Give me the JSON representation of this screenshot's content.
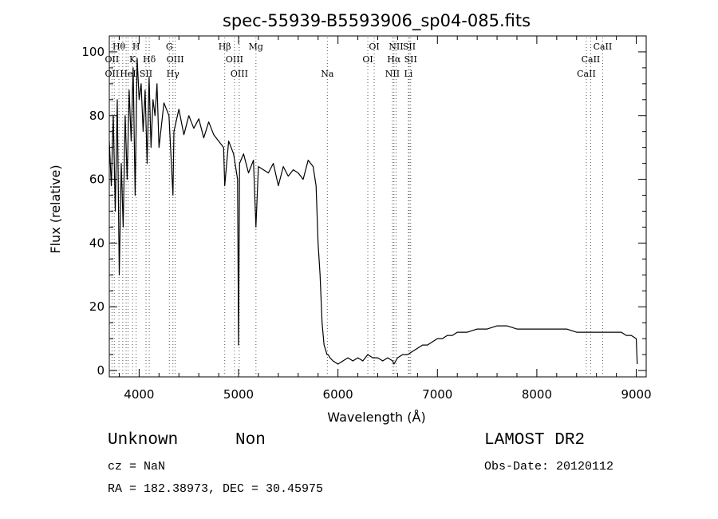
{
  "chart_data": {
    "type": "line",
    "title": "spec-55939-B5593906_sp04-085.fits",
    "xlabel": "Wavelength (Å)",
    "ylabel": "Flux (relative)",
    "xlim": [
      3700,
      9100
    ],
    "ylim": [
      -2,
      105
    ],
    "xticks": [
      4000,
      5000,
      6000,
      7000,
      8000,
      9000
    ],
    "yticks": [
      0,
      20,
      40,
      60,
      80,
      100
    ],
    "grid": false,
    "series": [
      {
        "x": [
          3700,
          3720,
          3740,
          3760,
          3780,
          3800,
          3820,
          3840,
          3860,
          3880,
          3900,
          3920,
          3940,
          3960,
          3980,
          4000,
          4020,
          4040,
          4060,
          4080,
          4100,
          4120,
          4140,
          4160,
          4180,
          4200,
          4250,
          4300,
          4340,
          4350,
          4400,
          4450,
          4500,
          4550,
          4600,
          4650,
          4700,
          4750,
          4800,
          4850,
          4861,
          4900,
          4950,
          4990,
          5000,
          5010,
          5050,
          5100,
          5150,
          5175,
          5200,
          5250,
          5300,
          5350,
          5400,
          5450,
          5500,
          5550,
          5600,
          5650,
          5700,
          5750,
          5780,
          5800,
          5820,
          5840,
          5860,
          5880,
          5890,
          5900,
          5920,
          5950,
          6000,
          6050,
          6100,
          6150,
          6200,
          6250,
          6300,
          6350,
          6400,
          6450,
          6500,
          6550,
          6563,
          6600,
          6650,
          6700,
          6750,
          6800,
          6850,
          6900,
          6950,
          7000,
          7050,
          7100,
          7150,
          7200,
          7300,
          7400,
          7500,
          7600,
          7650,
          7700,
          7800,
          7900,
          8000,
          8100,
          8200,
          8300,
          8400,
          8500,
          8550,
          8600,
          8650,
          8700,
          8800,
          8850,
          8900,
          8950,
          9000,
          9010
        ],
        "y": [
          72,
          58,
          80,
          50,
          85,
          30,
          65,
          45,
          80,
          60,
          88,
          72,
          95,
          55,
          98,
          85,
          90,
          75,
          88,
          65,
          92,
          70,
          85,
          80,
          90,
          70,
          84,
          80,
          55,
          75,
          82,
          74,
          80,
          76,
          79,
          73,
          78,
          74,
          72,
          70,
          58,
          72,
          68,
          60,
          8,
          65,
          68,
          62,
          66,
          45,
          64,
          63,
          62,
          65,
          58,
          64,
          61,
          63,
          62,
          60,
          66,
          64,
          58,
          40,
          30,
          15,
          8,
          6,
          5,
          5,
          4,
          3,
          2,
          3,
          4,
          3,
          4,
          3,
          5,
          4,
          4,
          3,
          4,
          3,
          2,
          4,
          5,
          5,
          6,
          7,
          8,
          8,
          9,
          10,
          10,
          11,
          11,
          12,
          12,
          13,
          13,
          14,
          14,
          14,
          13,
          13,
          13,
          13,
          13,
          13,
          12,
          12,
          12,
          12,
          12,
          12,
          12,
          12,
          11,
          11,
          10,
          2
        ]
      }
    ],
    "emission_lines": [
      {
        "label": "Hθ",
        "x": 3797,
        "row": 1
      },
      {
        "label": "H",
        "x": 3970,
        "row": 1
      },
      {
        "label": "G",
        "x": 4304,
        "row": 1
      },
      {
        "label": "Hβ",
        "x": 4861,
        "row": 1
      },
      {
        "label": "Mg",
        "x": 5175,
        "row": 1
      },
      {
        "label": "OI",
        "x": 6364,
        "row": 1
      },
      {
        "label": "NII",
        "x": 6584,
        "row": 1
      },
      {
        "label": "SII",
        "x": 6717,
        "row": 1
      },
      {
        "label": "CaII",
        "x": 8662,
        "row": 1
      },
      {
        "label": "OII",
        "x": 3727,
        "row": 2
      },
      {
        "label": "K",
        "x": 3934,
        "row": 2
      },
      {
        "label": "Hδ",
        "x": 4102,
        "row": 2
      },
      {
        "label": "OIII",
        "x": 4363,
        "row": 2
      },
      {
        "label": "OIII",
        "x": 4959,
        "row": 2
      },
      {
        "label": "OI",
        "x": 6300,
        "row": 2
      },
      {
        "label": "Hα",
        "x": 6563,
        "row": 2
      },
      {
        "label": "SII",
        "x": 6731,
        "row": 2
      },
      {
        "label": "CaII",
        "x": 8542,
        "row": 2
      },
      {
        "label": "OII",
        "x": 3727,
        "row": 3
      },
      {
        "label": "HeI",
        "x": 3889,
        "row": 3
      },
      {
        "label": "SII",
        "x": 4069,
        "row": 3
      },
      {
        "label": "Hγ",
        "x": 4340,
        "row": 3
      },
      {
        "label": "OIII",
        "x": 5007,
        "row": 3
      },
      {
        "label": "Na",
        "x": 5893,
        "row": 3
      },
      {
        "label": "NII",
        "x": 6548,
        "row": 3
      },
      {
        "label": "Li",
        "x": 6708,
        "row": 3
      },
      {
        "label": "CaII",
        "x": 8498,
        "row": 3
      }
    ],
    "line_markers_x": [
      3727,
      3750,
      3797,
      3835,
      3869,
      3889,
      3934,
      3970,
      4069,
      4102,
      4304,
      4340,
      4363,
      4861,
      4959,
      5007,
      5175,
      5893,
      6300,
      6364,
      6548,
      6563,
      6584,
      6708,
      6717,
      6731,
      8498,
      8542,
      8662
    ]
  },
  "info": {
    "object_class": "Unknown",
    "subclass": "Non",
    "cz": "cz = NaN",
    "coords": "RA = 182.38973, DEC =  30.45975",
    "survey": "LAMOST DR2",
    "obs_date": "Obs-Date: 20120112"
  }
}
